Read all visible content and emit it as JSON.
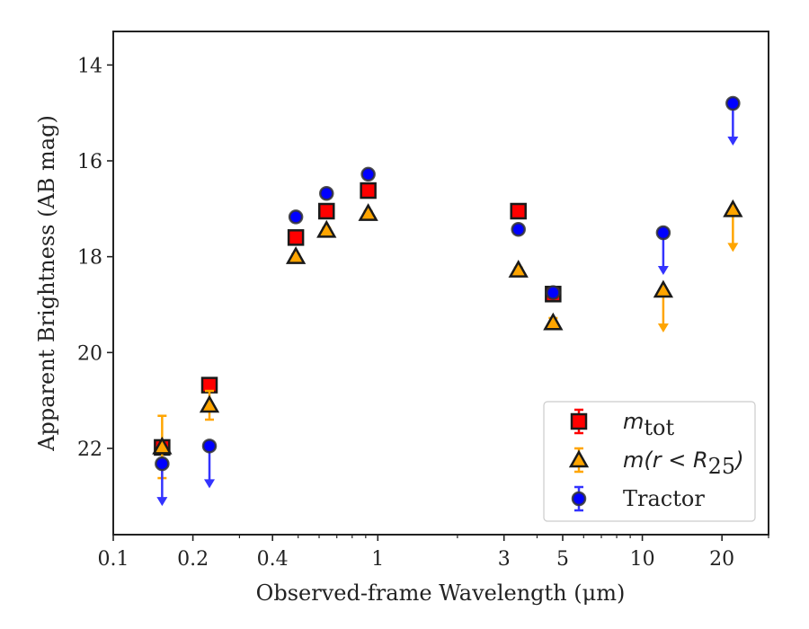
{
  "chart_data": {
    "type": "scatter",
    "xlabel": "Observed-frame Wavelength (μm)",
    "ylabel": "Apparent Brightness (AB mag)",
    "xscale": "log",
    "xlim": [
      0.1,
      30
    ],
    "ylim": [
      23.8,
      13.3
    ],
    "y_inverted": true,
    "x_ticks": [
      {
        "value": 0.1,
        "label": "0.1"
      },
      {
        "value": 0.2,
        "label": "0.2"
      },
      {
        "value": 0.4,
        "label": "0.4"
      },
      {
        "value": 1,
        "label": "1"
      },
      {
        "value": 3,
        "label": "3"
      },
      {
        "value": 5,
        "label": "5"
      },
      {
        "value": 10,
        "label": "10"
      },
      {
        "value": 20,
        "label": "20"
      }
    ],
    "y_ticks": [
      {
        "value": 14,
        "label": "14"
      },
      {
        "value": 16,
        "label": "16"
      },
      {
        "value": 18,
        "label": "18"
      },
      {
        "value": 20,
        "label": "20"
      },
      {
        "value": 22,
        "label": "22"
      }
    ],
    "grid": false,
    "legend_position": "bottom-right",
    "series": [
      {
        "name": "tot",
        "marker": "square",
        "color": "#ff0000",
        "edge_color": "#1a1a1a",
        "errbar_color": "#ff0000",
        "points": [
          {
            "x": 0.153,
            "y": 21.98,
            "err": 0.08
          },
          {
            "x": 0.231,
            "y": 20.68,
            "err": 0.06
          },
          {
            "x": 0.49,
            "y": 17.6,
            "err": 0.04
          },
          {
            "x": 0.64,
            "y": 17.05,
            "err": 0.04
          },
          {
            "x": 0.92,
            "y": 16.62,
            "err": 0.04
          },
          {
            "x": 3.4,
            "y": 17.05,
            "err": 0.04
          },
          {
            "x": 4.6,
            "y": 18.78,
            "err": 0.06
          }
        ]
      },
      {
        "name": "m(r < R25)",
        "marker": "triangle",
        "color": "#ffa500",
        "edge_color": "#1a1a1a",
        "errbar_color": "#ffa500",
        "points": [
          {
            "x": 0.153,
            "y": 21.97,
            "err": 0.65
          },
          {
            "x": 0.231,
            "y": 21.1,
            "err": 0.3
          },
          {
            "x": 0.49,
            "y": 18.0,
            "err": 0.05
          },
          {
            "x": 0.64,
            "y": 17.45,
            "err": 0.05
          },
          {
            "x": 0.92,
            "y": 17.1,
            "err": 0.05
          },
          {
            "x": 3.4,
            "y": 18.28,
            "err": 0.05
          },
          {
            "x": 4.6,
            "y": 19.38,
            "err": 0.1
          },
          {
            "x": 12,
            "y": 18.7,
            "upper_limit": true
          },
          {
            "x": 22,
            "y": 17.02,
            "upper_limit": true
          }
        ]
      },
      {
        "name": "Tractor",
        "marker": "circle",
        "color": "#0000ff",
        "edge_color": "#333333",
        "errbar_color": "#3333ff",
        "points": [
          {
            "x": 0.153,
            "y": 22.32,
            "upper_limit": true
          },
          {
            "x": 0.231,
            "y": 21.95,
            "upper_limit": true
          },
          {
            "x": 0.49,
            "y": 17.17,
            "err": 0.04
          },
          {
            "x": 0.64,
            "y": 16.68,
            "err": 0.04
          },
          {
            "x": 0.92,
            "y": 16.28,
            "err": 0.04
          },
          {
            "x": 3.4,
            "y": 17.43,
            "err": 0.04
          },
          {
            "x": 4.6,
            "y": 18.75,
            "err": 0.06
          },
          {
            "x": 12,
            "y": 17.5,
            "upper_limit": true
          },
          {
            "x": 22,
            "y": 14.8,
            "upper_limit": true
          }
        ]
      }
    ],
    "legend": {
      "entries": [
        {
          "prefix": "m",
          "sub": "tot",
          "text": ""
        },
        {
          "prefix": "m(r < R",
          "sub": "25",
          "text": ")"
        },
        {
          "prefix": "",
          "sub": "",
          "text": "Tractor"
        }
      ]
    }
  }
}
